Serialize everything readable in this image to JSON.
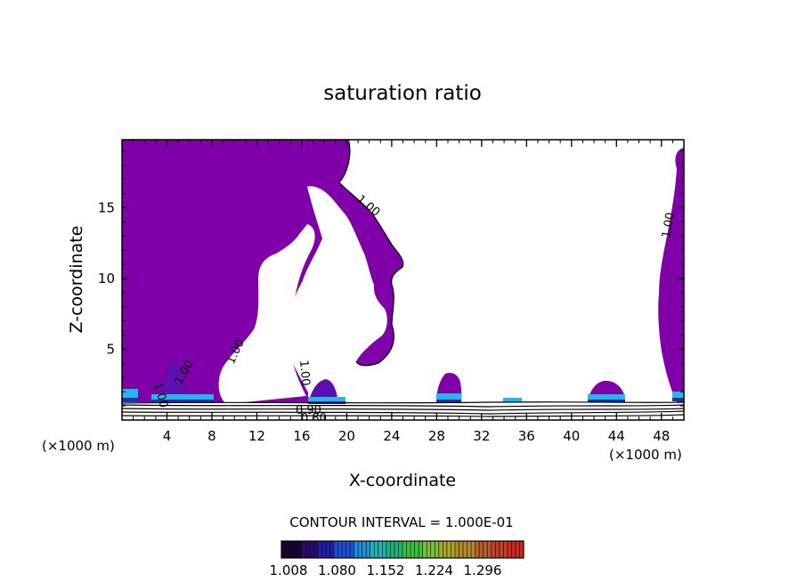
{
  "chart_data": {
    "type": "contour",
    "title": "saturation ratio",
    "xlabel": "X-coordinate",
    "ylabel": "Z-coordinate",
    "x_unit_left": "(×1000 m)",
    "x_unit_right": "(×1000 m)",
    "xlim": [
      0,
      50
    ],
    "ylim": [
      0,
      19.8
    ],
    "x_ticks": [
      4,
      8,
      12,
      16,
      20,
      24,
      28,
      32,
      36,
      40,
      44,
      48
    ],
    "y_ticks": [
      5,
      10,
      15
    ],
    "contour_interval_text": "CONTOUR INTERVAL = 1.000E-01",
    "contour_labels": [
      "1.00",
      "1.00",
      "1.00",
      "1.00",
      "1.00",
      "1.00",
      "0.90",
      "0.80"
    ],
    "colorbar": {
      "ticks": [
        "1.008",
        "1.080",
        "1.152",
        "1.224",
        "1.296"
      ],
      "colors": [
        "#1a0033",
        "#2a0a6e",
        "#1f1fa8",
        "#1f4fd6",
        "#1f8fd6",
        "#1fb5b5",
        "#1fb57a",
        "#3fbf3f",
        "#7fbf3f",
        "#a8a82a",
        "#b58a2a",
        "#b5602a",
        "#c0402a",
        "#d0281f"
      ]
    },
    "fill_color": "#7f00a8",
    "bright_color": "#22b8e8",
    "dark_color": "#1f2fa8"
  }
}
